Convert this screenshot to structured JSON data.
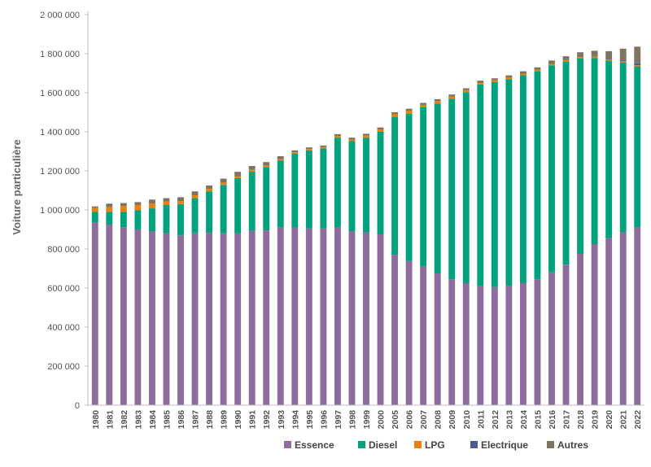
{
  "chart_data": {
    "type": "bar",
    "stacked": true,
    "title": "",
    "xlabel": "",
    "ylabel": "Voiture particulière",
    "ylim": [
      0,
      2000000
    ],
    "yticks": [
      0,
      200000,
      400000,
      600000,
      800000,
      1000000,
      1200000,
      1400000,
      1600000,
      1800000,
      2000000
    ],
    "ytick_labels": [
      "0",
      "200 000",
      "400 000",
      "600 000",
      "800 000",
      "1 000 000",
      "1 200 000",
      "1 400 000",
      "1 600 000",
      "1 800 000",
      "2 000 000"
    ],
    "grid": false,
    "legend_position": "bottom",
    "categories": [
      "1980",
      "1981",
      "1982",
      "1983",
      "1984",
      "1985",
      "1986",
      "1987",
      "1988",
      "1989",
      "1990",
      "1991",
      "1992",
      "1993",
      "1994",
      "1995",
      "1996",
      "1997",
      "1998",
      "1999",
      "2000",
      "2005",
      "2006",
      "2007",
      "2008",
      "2009",
      "2010",
      "2011",
      "2012",
      "2013",
      "2014",
      "2015",
      "2016",
      "2017",
      "2018",
      "2019",
      "2020",
      "2021",
      "2022"
    ],
    "series": [
      {
        "name": "Essence",
        "color": "#8E6C9E",
        "values": [
          935000,
          925000,
          912000,
          900000,
          890000,
          880000,
          870000,
          880000,
          882000,
          880000,
          880000,
          893000,
          895000,
          910000,
          910000,
          905000,
          905000,
          910000,
          890000,
          885000,
          875000,
          770000,
          738000,
          710000,
          675000,
          645000,
          625000,
          610000,
          605000,
          610000,
          625000,
          645000,
          680000,
          720000,
          775000,
          825000,
          855000,
          885000,
          910000
        ]
      },
      {
        "name": "Diesel",
        "color": "#00A27E",
        "values": [
          55000,
          65000,
          78000,
          98000,
          118000,
          145000,
          160000,
          180000,
          213000,
          248000,
          283000,
          303000,
          325000,
          343000,
          378000,
          400000,
          410000,
          460000,
          462000,
          485000,
          525000,
          705000,
          755000,
          815000,
          870000,
          925000,
          978000,
          1033000,
          1050000,
          1060000,
          1065000,
          1065000,
          1060000,
          1040000,
          1000000,
          952000,
          910000,
          870000,
          825000
        ]
      },
      {
        "name": "LPG",
        "color": "#E8800C",
        "values": [
          20000,
          25000,
          30000,
          27000,
          25000,
          18000,
          15000,
          15000,
          13000,
          12000,
          10000,
          9000,
          8000,
          7000,
          7000,
          7000,
          7000,
          8000,
          8000,
          10000,
          12000,
          15000,
          15000,
          13000,
          12000,
          11000,
          10000,
          9000,
          9000,
          9000,
          8000,
          8000,
          7000,
          7000,
          7000,
          7000,
          6000,
          6000,
          6000
        ]
      },
      {
        "name": "Electrique",
        "color": "#4A5B95",
        "values": [
          0,
          0,
          0,
          0,
          0,
          0,
          0,
          0,
          0,
          0,
          0,
          0,
          0,
          0,
          0,
          0,
          0,
          0,
          0,
          0,
          0,
          0,
          0,
          0,
          0,
          0,
          0,
          0,
          0,
          0,
          0,
          0,
          0,
          0,
          500,
          1000,
          2000,
          5000,
          10000
        ]
      },
      {
        "name": "Autres",
        "color": "#7E7462",
        "values": [
          8000,
          17000,
          15000,
          15000,
          20000,
          17000,
          20000,
          20000,
          17000,
          20000,
          22000,
          20000,
          17000,
          15000,
          10000,
          8000,
          8000,
          10000,
          10000,
          10000,
          10000,
          10000,
          10000,
          10000,
          10000,
          10000,
          10000,
          10000,
          10000,
          10000,
          12000,
          12000,
          18000,
          20000,
          25000,
          30000,
          40000,
          60000,
          85000
        ]
      }
    ]
  }
}
